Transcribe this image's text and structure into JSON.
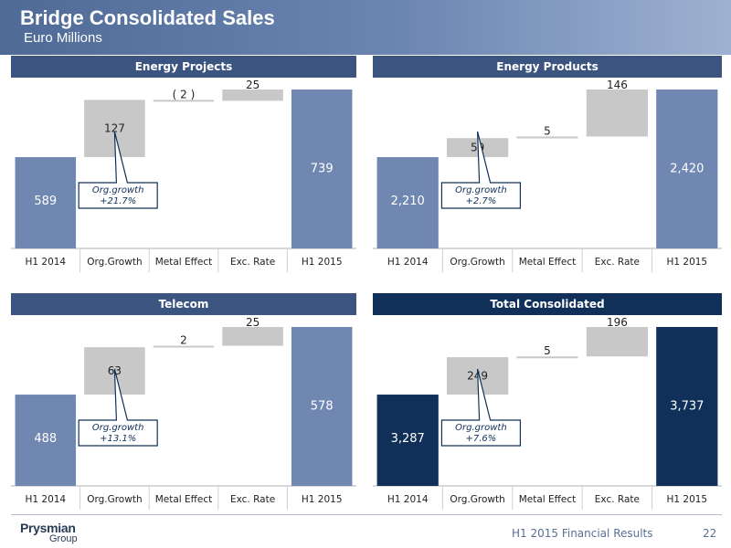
{
  "header": {
    "title": "Bridge Consolidated Sales",
    "subtitle": "Euro Millions"
  },
  "footer": {
    "logo": "Prysmian",
    "logo_sub": "Group",
    "text": "H1 2015 Financial Results",
    "page": "22"
  },
  "colors": {
    "bar_mid": "#7087b2",
    "bar_dark": "#10305a",
    "bridge": "#c8c8c8",
    "header": "#4f6a96"
  },
  "chart_data": [
    {
      "type": "bar",
      "title": "Energy Projects",
      "categories": [
        "H1 2014",
        "Org.Growth",
        "Metal Effect",
        "Exc. Rate",
        "H1 2015"
      ],
      "values": [
        589,
        127,
        -2,
        25,
        739
      ],
      "value_labels": [
        "589",
        "127",
        "( 2 )",
        "25",
        "739"
      ],
      "annotation": [
        "Org.growth",
        "+21.7%"
      ],
      "color": "#7087b2"
    },
    {
      "type": "bar",
      "title": "Energy Products",
      "categories": [
        "H1 2014",
        "Org.Growth",
        "Metal Effect",
        "Exc. Rate",
        "H1 2015"
      ],
      "values": [
        2210,
        59,
        5,
        146,
        2420
      ],
      "value_labels": [
        "2,210",
        "59",
        "5",
        "146",
        "2,420"
      ],
      "annotation": [
        "Org.growth",
        "+2.7%"
      ],
      "color": "#7087b2"
    },
    {
      "type": "bar",
      "title": "Telecom",
      "categories": [
        "H1 2014",
        "Org.Growth",
        "Metal Effect",
        "Exc. Rate",
        "H1 2015"
      ],
      "values": [
        488,
        63,
        2,
        25,
        578
      ],
      "value_labels": [
        "488",
        "63",
        "2",
        "25",
        "578"
      ],
      "annotation": [
        "Org.growth",
        "+13.1%"
      ],
      "color": "#7087b2"
    },
    {
      "type": "bar",
      "title": "Total Consolidated",
      "categories": [
        "H1 2014",
        "Org.Growth",
        "Metal Effect",
        "Exc. Rate",
        "H1 2015"
      ],
      "values": [
        3287,
        249,
        5,
        196,
        3737
      ],
      "value_labels": [
        "3,287",
        "249",
        "5",
        "196",
        "3,737"
      ],
      "annotation": [
        "Org.growth",
        "+7.6%"
      ],
      "color": "#10305a"
    }
  ]
}
